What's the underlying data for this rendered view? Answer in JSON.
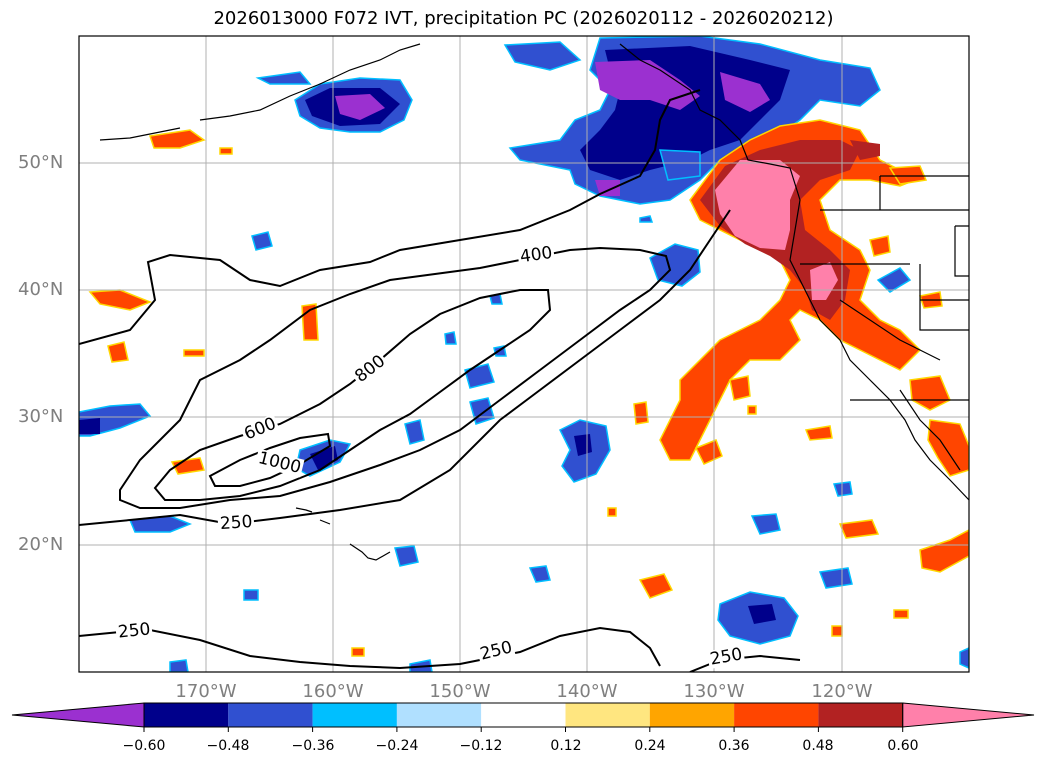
{
  "title": "2026013000 F072 IVT, precipitation PC (2026020112 - 2026020212)",
  "lat_labels": [
    "50°N",
    "40°N",
    "30°N",
    "20°N"
  ],
  "lon_labels": [
    "170°W",
    "160°W",
    "150°W",
    "140°W",
    "130°W",
    "120°W"
  ],
  "contour_labels": [
    "400",
    "600",
    "800",
    "1000",
    "250",
    "250",
    "250",
    "250"
  ],
  "colorbar": {
    "ticks": [
      "−0.60",
      "−0.48",
      "−0.36",
      "−0.24",
      "−0.12",
      "0.12",
      "0.24",
      "0.36",
      "0.48",
      "0.60"
    ],
    "colors": [
      "#9b30d0",
      "#00008b",
      "#3050d0",
      "#00bfff",
      "#b0e0ff",
      "#ffffff",
      "#ffe680",
      "#ffa500",
      "#ff4500",
      "#b22222",
      "#ff80aa"
    ]
  }
}
